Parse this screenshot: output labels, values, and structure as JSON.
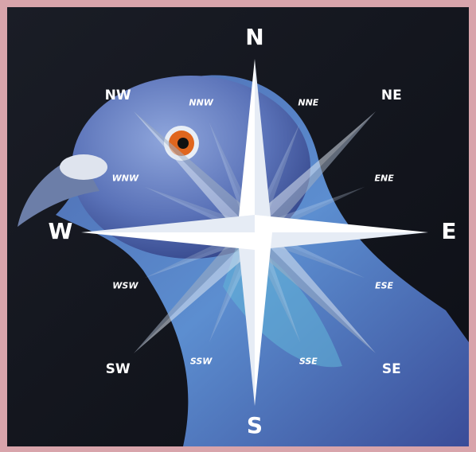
{
  "compass": {
    "points": [
      "N",
      "NNE",
      "NE",
      "ENE",
      "E",
      "ESE",
      "SE",
      "SSE",
      "S",
      "SSW",
      "SW",
      "WSW",
      "W",
      "WNW",
      "NW",
      "NNW"
    ]
  }
}
